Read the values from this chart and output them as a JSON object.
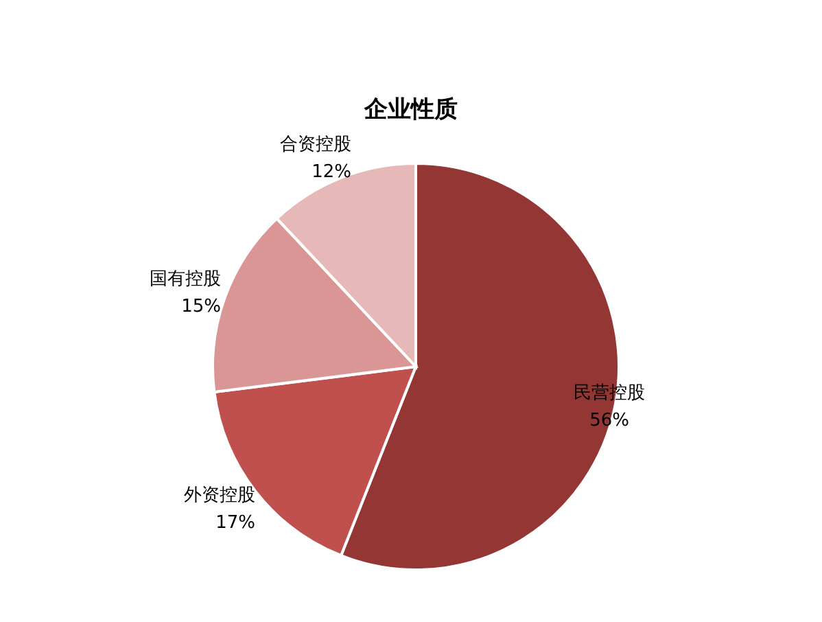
{
  "chart_data": {
    "type": "pie",
    "title": "企业性质",
    "categories": [
      "民营控股",
      "外资控股",
      "国有控股",
      "合资控股"
    ],
    "values": [
      56,
      17,
      15,
      12
    ],
    "value_labels": [
      "56%",
      "17%",
      "15%",
      "12%"
    ],
    "colors": [
      "#943634",
      "#c0504d",
      "#d99694",
      "#e6b9b8"
    ],
    "legend": false
  }
}
